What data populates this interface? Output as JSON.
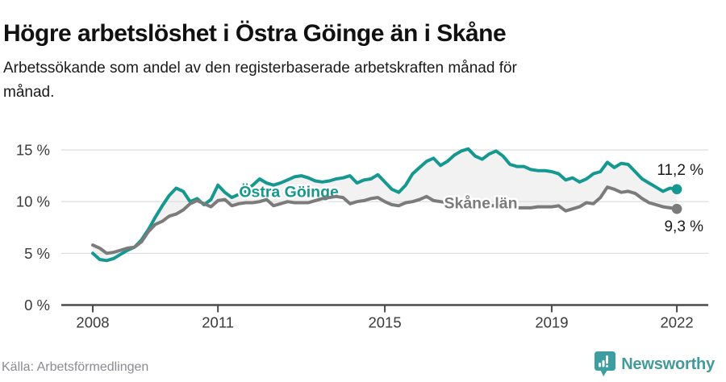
{
  "header": {
    "title": "Högre arbetslöshet i Östra Göinge än i Skåne",
    "subtitle_lines": [
      "Arbetssökande som andel av den registerbaserade arbetskraften månad för",
      "månad."
    ]
  },
  "footer": {
    "source": "Källa: Arbetsförmedlingen",
    "brand": "Newsworthy"
  },
  "colors": {
    "accent_teal": "#159890",
    "line_gray": "#7b7b7b",
    "fill_between": "#f2f2f2",
    "gridline": "#e0e0e0",
    "axis": "#4a4a4a",
    "tick_text": "#3a3a3a",
    "logo_teal": "#3c9ea0"
  },
  "chart_data": {
    "type": "line",
    "title": "Högre arbetslöshet i Östra Göinge än i Skåne",
    "subtitle": "Arbetssökande som andel av den registerbaserade arbetskraften månad för månad.",
    "xlabel": "",
    "ylabel": "",
    "grid": true,
    "x_start": 2008,
    "x_end": 2022,
    "points_per_year": 6,
    "x_ticks": [
      2008,
      2011,
      2015,
      2019,
      2022
    ],
    "y_ticks": [
      0,
      5,
      10,
      15
    ],
    "y_tick_labels": [
      "0 %",
      "5 %",
      "10 %",
      "15 %"
    ],
    "ylim": [
      0,
      15.6
    ],
    "fill_between_series": true,
    "series": [
      {
        "name": "Östra Göinge",
        "color": "#159890",
        "end_value": 11.2,
        "end_label": "11,2 %",
        "label_pos": {
          "x": 2012.7,
          "y": 11.0
        },
        "values": [
          5.0,
          4.4,
          4.3,
          4.5,
          4.9,
          5.3,
          5.6,
          6.3,
          7.3,
          8.5,
          9.6,
          10.6,
          11.3,
          11.0,
          10.0,
          10.3,
          9.7,
          10.2,
          11.6,
          10.9,
          10.4,
          10.7,
          11.0,
          11.6,
          12.2,
          11.8,
          11.6,
          11.8,
          12.1,
          12.4,
          12.5,
          12.3,
          12.0,
          11.9,
          12.0,
          12.2,
          12.3,
          12.5,
          11.8,
          12.1,
          12.2,
          12.6,
          11.9,
          11.2,
          10.9,
          11.6,
          12.7,
          13.3,
          13.9,
          14.2,
          13.5,
          13.9,
          14.5,
          14.9,
          15.1,
          14.4,
          14.1,
          14.6,
          14.9,
          14.4,
          13.6,
          13.4,
          13.4,
          13.1,
          13.0,
          13.0,
          12.9,
          12.7,
          12.1,
          12.3,
          11.9,
          12.2,
          12.7,
          12.9,
          13.8,
          13.3,
          13.7,
          13.6,
          12.9,
          12.2,
          11.8,
          11.4,
          11.0,
          11.3,
          11.2
        ]
      },
      {
        "name": "Skåne län",
        "color": "#7b7b7b",
        "end_value": 9.3,
        "end_label": "9,3 %",
        "label_pos": {
          "x": 2017.3,
          "y": 9.9
        },
        "values": [
          5.8,
          5.5,
          5.0,
          5.1,
          5.3,
          5.5,
          5.6,
          6.1,
          7.1,
          7.8,
          8.1,
          8.6,
          8.8,
          9.2,
          9.8,
          10.1,
          9.8,
          9.5,
          10.1,
          10.2,
          9.6,
          9.8,
          9.9,
          9.9,
          10.0,
          10.2,
          9.6,
          9.8,
          10.0,
          9.9,
          9.9,
          9.9,
          10.1,
          10.3,
          10.4,
          10.5,
          10.4,
          9.8,
          10.0,
          10.1,
          10.3,
          10.4,
          10.0,
          9.7,
          9.6,
          9.9,
          10.0,
          10.2,
          10.5,
          10.1,
          10.0,
          9.9,
          9.9,
          9.8,
          9.8,
          9.7,
          9.7,
          9.6,
          9.6,
          9.5,
          9.5,
          9.4,
          9.4,
          9.4,
          9.5,
          9.5,
          9.5,
          9.6,
          9.1,
          9.3,
          9.5,
          9.9,
          9.8,
          10.4,
          11.4,
          11.2,
          10.9,
          11.0,
          10.8,
          10.3,
          9.9,
          9.7,
          9.5,
          9.4,
          9.3
        ]
      }
    ]
  }
}
